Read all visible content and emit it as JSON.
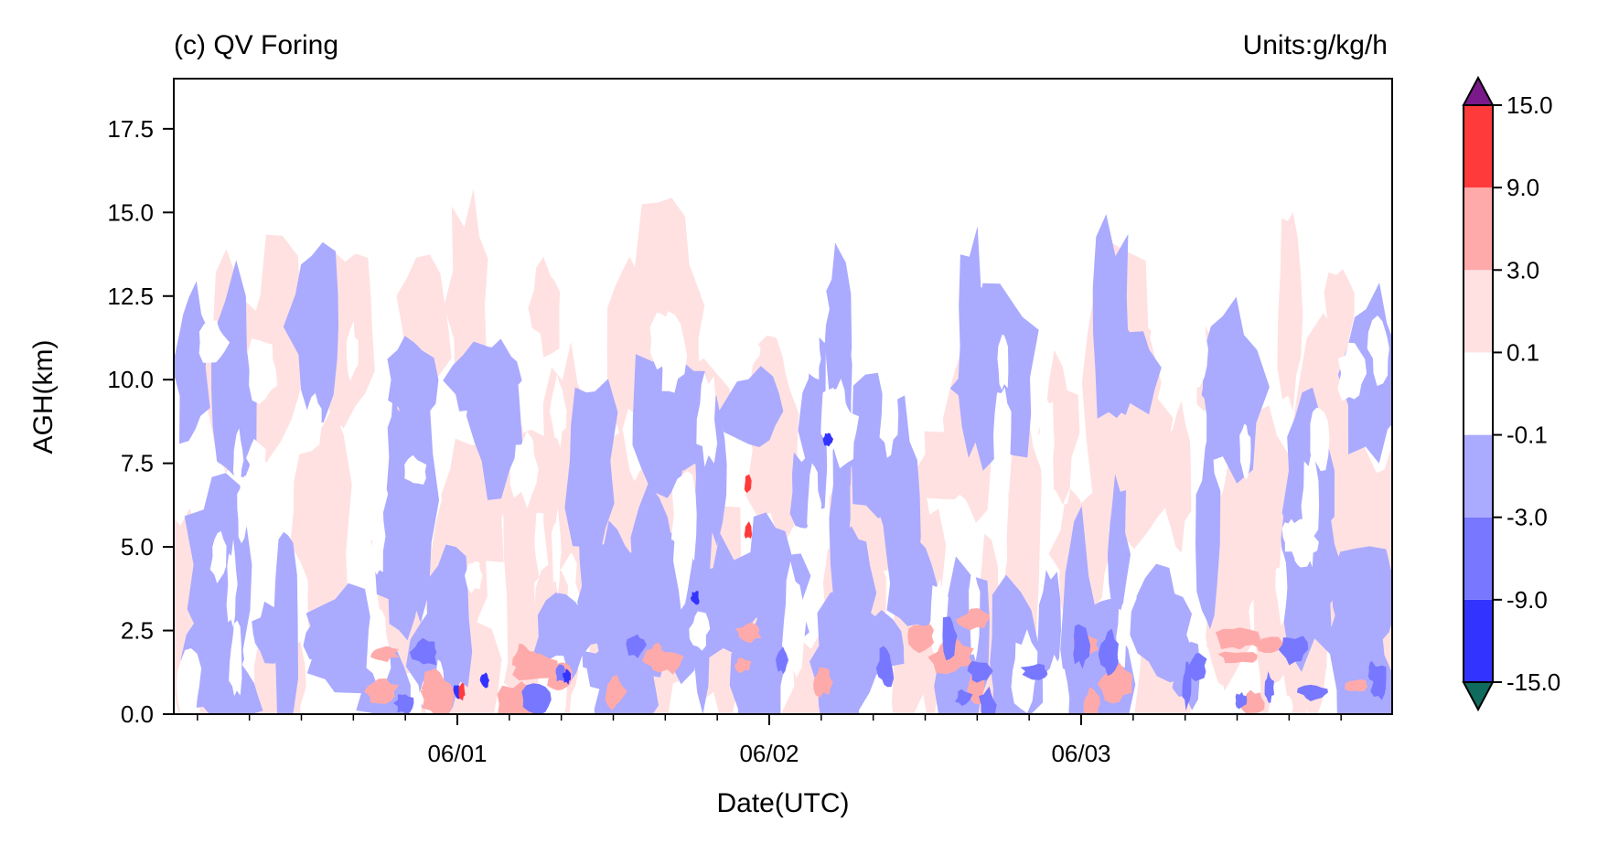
{
  "chart_data": {
    "type": "heatmap",
    "title_left": "(c) QV Foring",
    "title_right": "Units:g/kg/h",
    "xlabel": "Date(UTC)",
    "ylabel": "AGH(km)",
    "x_ticks": [
      "06/01",
      "06/02",
      "06/03"
    ],
    "y_ticks": [
      "0.0",
      "2.5",
      "5.0",
      "7.5",
      "10.0",
      "12.5",
      "15.0",
      "17.5"
    ],
    "ylim": [
      0,
      19
    ],
    "colorbar": {
      "levels": [
        "-15.0",
        "-9.0",
        "-3.0",
        "-0.1",
        "0.1",
        "3.0",
        "9.0",
        "15.0"
      ],
      "colors": [
        "#3333ff",
        "#7777ff",
        "#aaaaff",
        "#ffffff",
        "#ffe1e1",
        "#ffaaaa",
        "#ff3a3a"
      ],
      "under_color": "#0f6b5e",
      "over_color": "#7a1a8a"
    },
    "field_colors": {
      "strong_negative": "#3333ff",
      "moderate_negative": "#7777ff",
      "weak_negative": "#aaaaff",
      "neutral": "#ffffff",
      "weak_positive": "#ffe1e1",
      "moderate_positive": "#ffaaaa",
      "strong_positive": "#ff3a3a"
    }
  }
}
